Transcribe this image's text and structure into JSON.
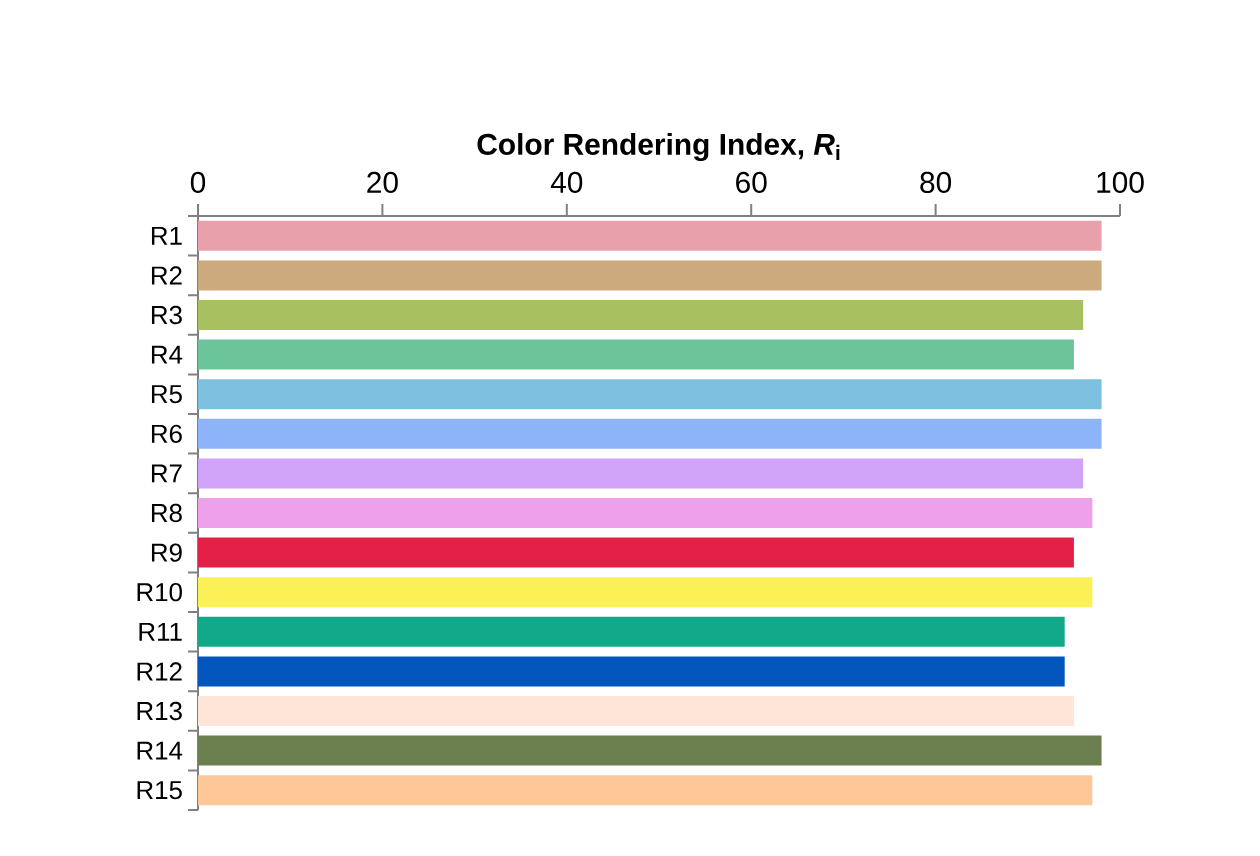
{
  "chart_data": {
    "type": "bar",
    "orientation": "horizontal",
    "title": "Color Rendering Index, *R*$_{i}$",
    "categories": [
      "R1",
      "R2",
      "R3",
      "R4",
      "R5",
      "R6",
      "R7",
      "R8",
      "R9",
      "R10",
      "R11",
      "R12",
      "R13",
      "R14",
      "R15"
    ],
    "values": [
      98,
      98,
      96,
      95,
      98,
      98,
      96,
      97,
      95,
      97,
      94,
      94,
      95,
      98,
      97
    ],
    "colors": [
      "#e8a1ab",
      "#cdaa7d",
      "#a8c060",
      "#6cc49a",
      "#7ec0e0",
      "#8db3f8",
      "#d0a2f8",
      "#eea0ea",
      "#e32048",
      "#fbf157",
      "#12a88a",
      "#0256bd",
      "#fde5d8",
      "#6c7f4f",
      "#fdc797"
    ],
    "xlim": [
      0,
      100
    ],
    "xticks": [
      0,
      20,
      40,
      60,
      80,
      100
    ],
    "grid": false
  }
}
